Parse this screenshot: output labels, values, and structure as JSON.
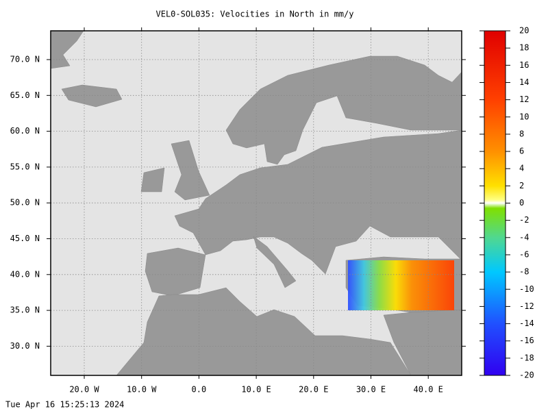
{
  "title": "VEL0-SOL035: Velocities in North in mm/y",
  "lat_labels": [
    "70.0 N",
    "65.0 N",
    "60.0 N",
    "55.0 N",
    "50.0 N",
    "45.0 N",
    "40.0 N",
    "35.0 N",
    "30.0 N"
  ],
  "lon_labels": [
    "20.0 W",
    "10.0 W",
    "0.0",
    "10.0 E",
    "20.0 E",
    "30.0 E",
    "40.0 E"
  ],
  "colorbar": {
    "lim": [
      -20,
      20
    ],
    "ticks": [
      20,
      18,
      16,
      14,
      12,
      10,
      8,
      6,
      4,
      2,
      0,
      -2,
      -4,
      -6,
      -8,
      -10,
      -12,
      -14,
      -16,
      -18,
      -20
    ]
  },
  "timestamp": "Tue Apr 16 15:25:13 2024"
}
